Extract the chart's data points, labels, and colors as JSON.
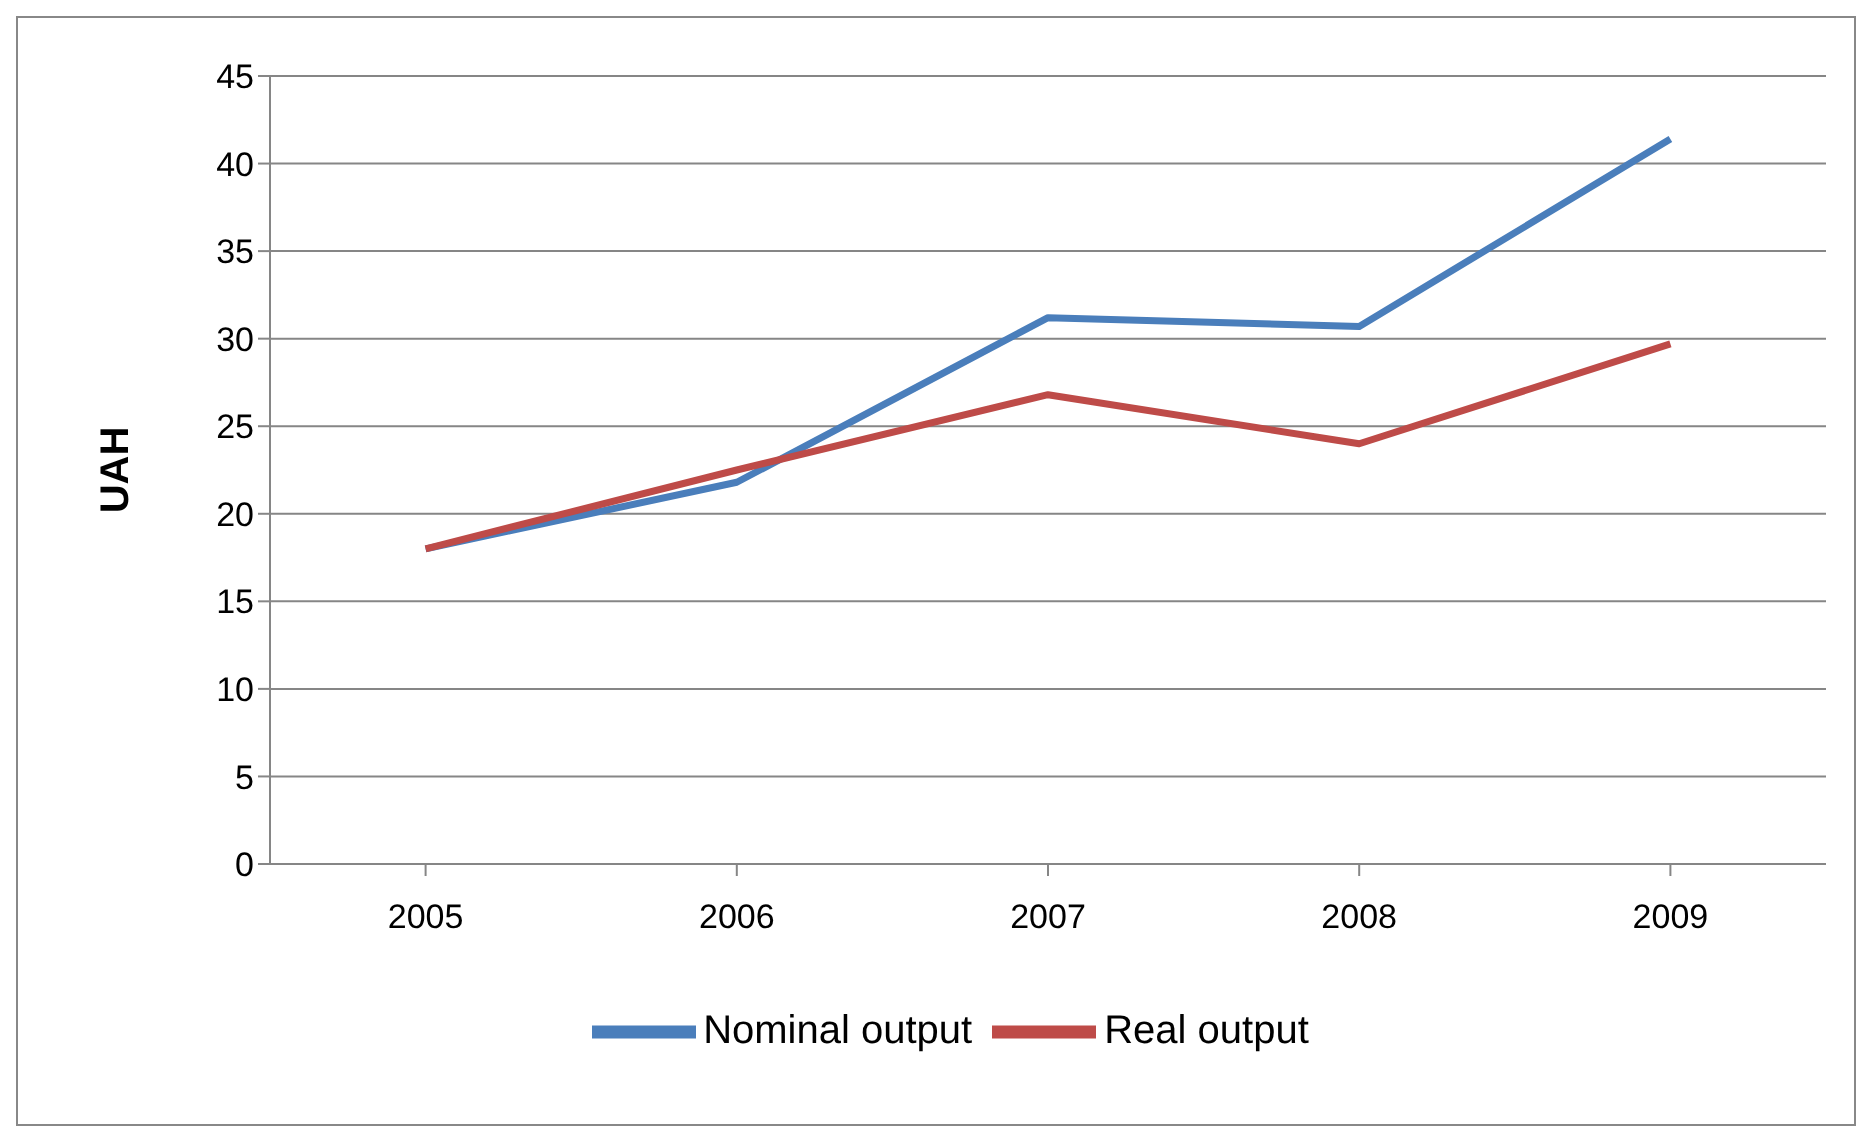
{
  "chart_data": {
    "type": "line",
    "ylabel": "UAH",
    "categories": [
      "2005",
      "2006",
      "2007",
      "2008",
      "2009"
    ],
    "series": [
      {
        "name": "Nominal output",
        "color": "#4a7ebb",
        "values": [
          18,
          21.8,
          31.2,
          30.7,
          41.4
        ]
      },
      {
        "name": "Real output",
        "color": "#be4b48",
        "values": [
          18,
          22.5,
          26.8,
          24,
          29.7
        ]
      }
    ],
    "ylim": [
      0,
      45
    ],
    "yticks": [
      0,
      5,
      10,
      15,
      20,
      25,
      30,
      35,
      40,
      45
    ],
    "grid": "y",
    "legend": "bottom",
    "marker": "none",
    "line_style": "solid"
  }
}
